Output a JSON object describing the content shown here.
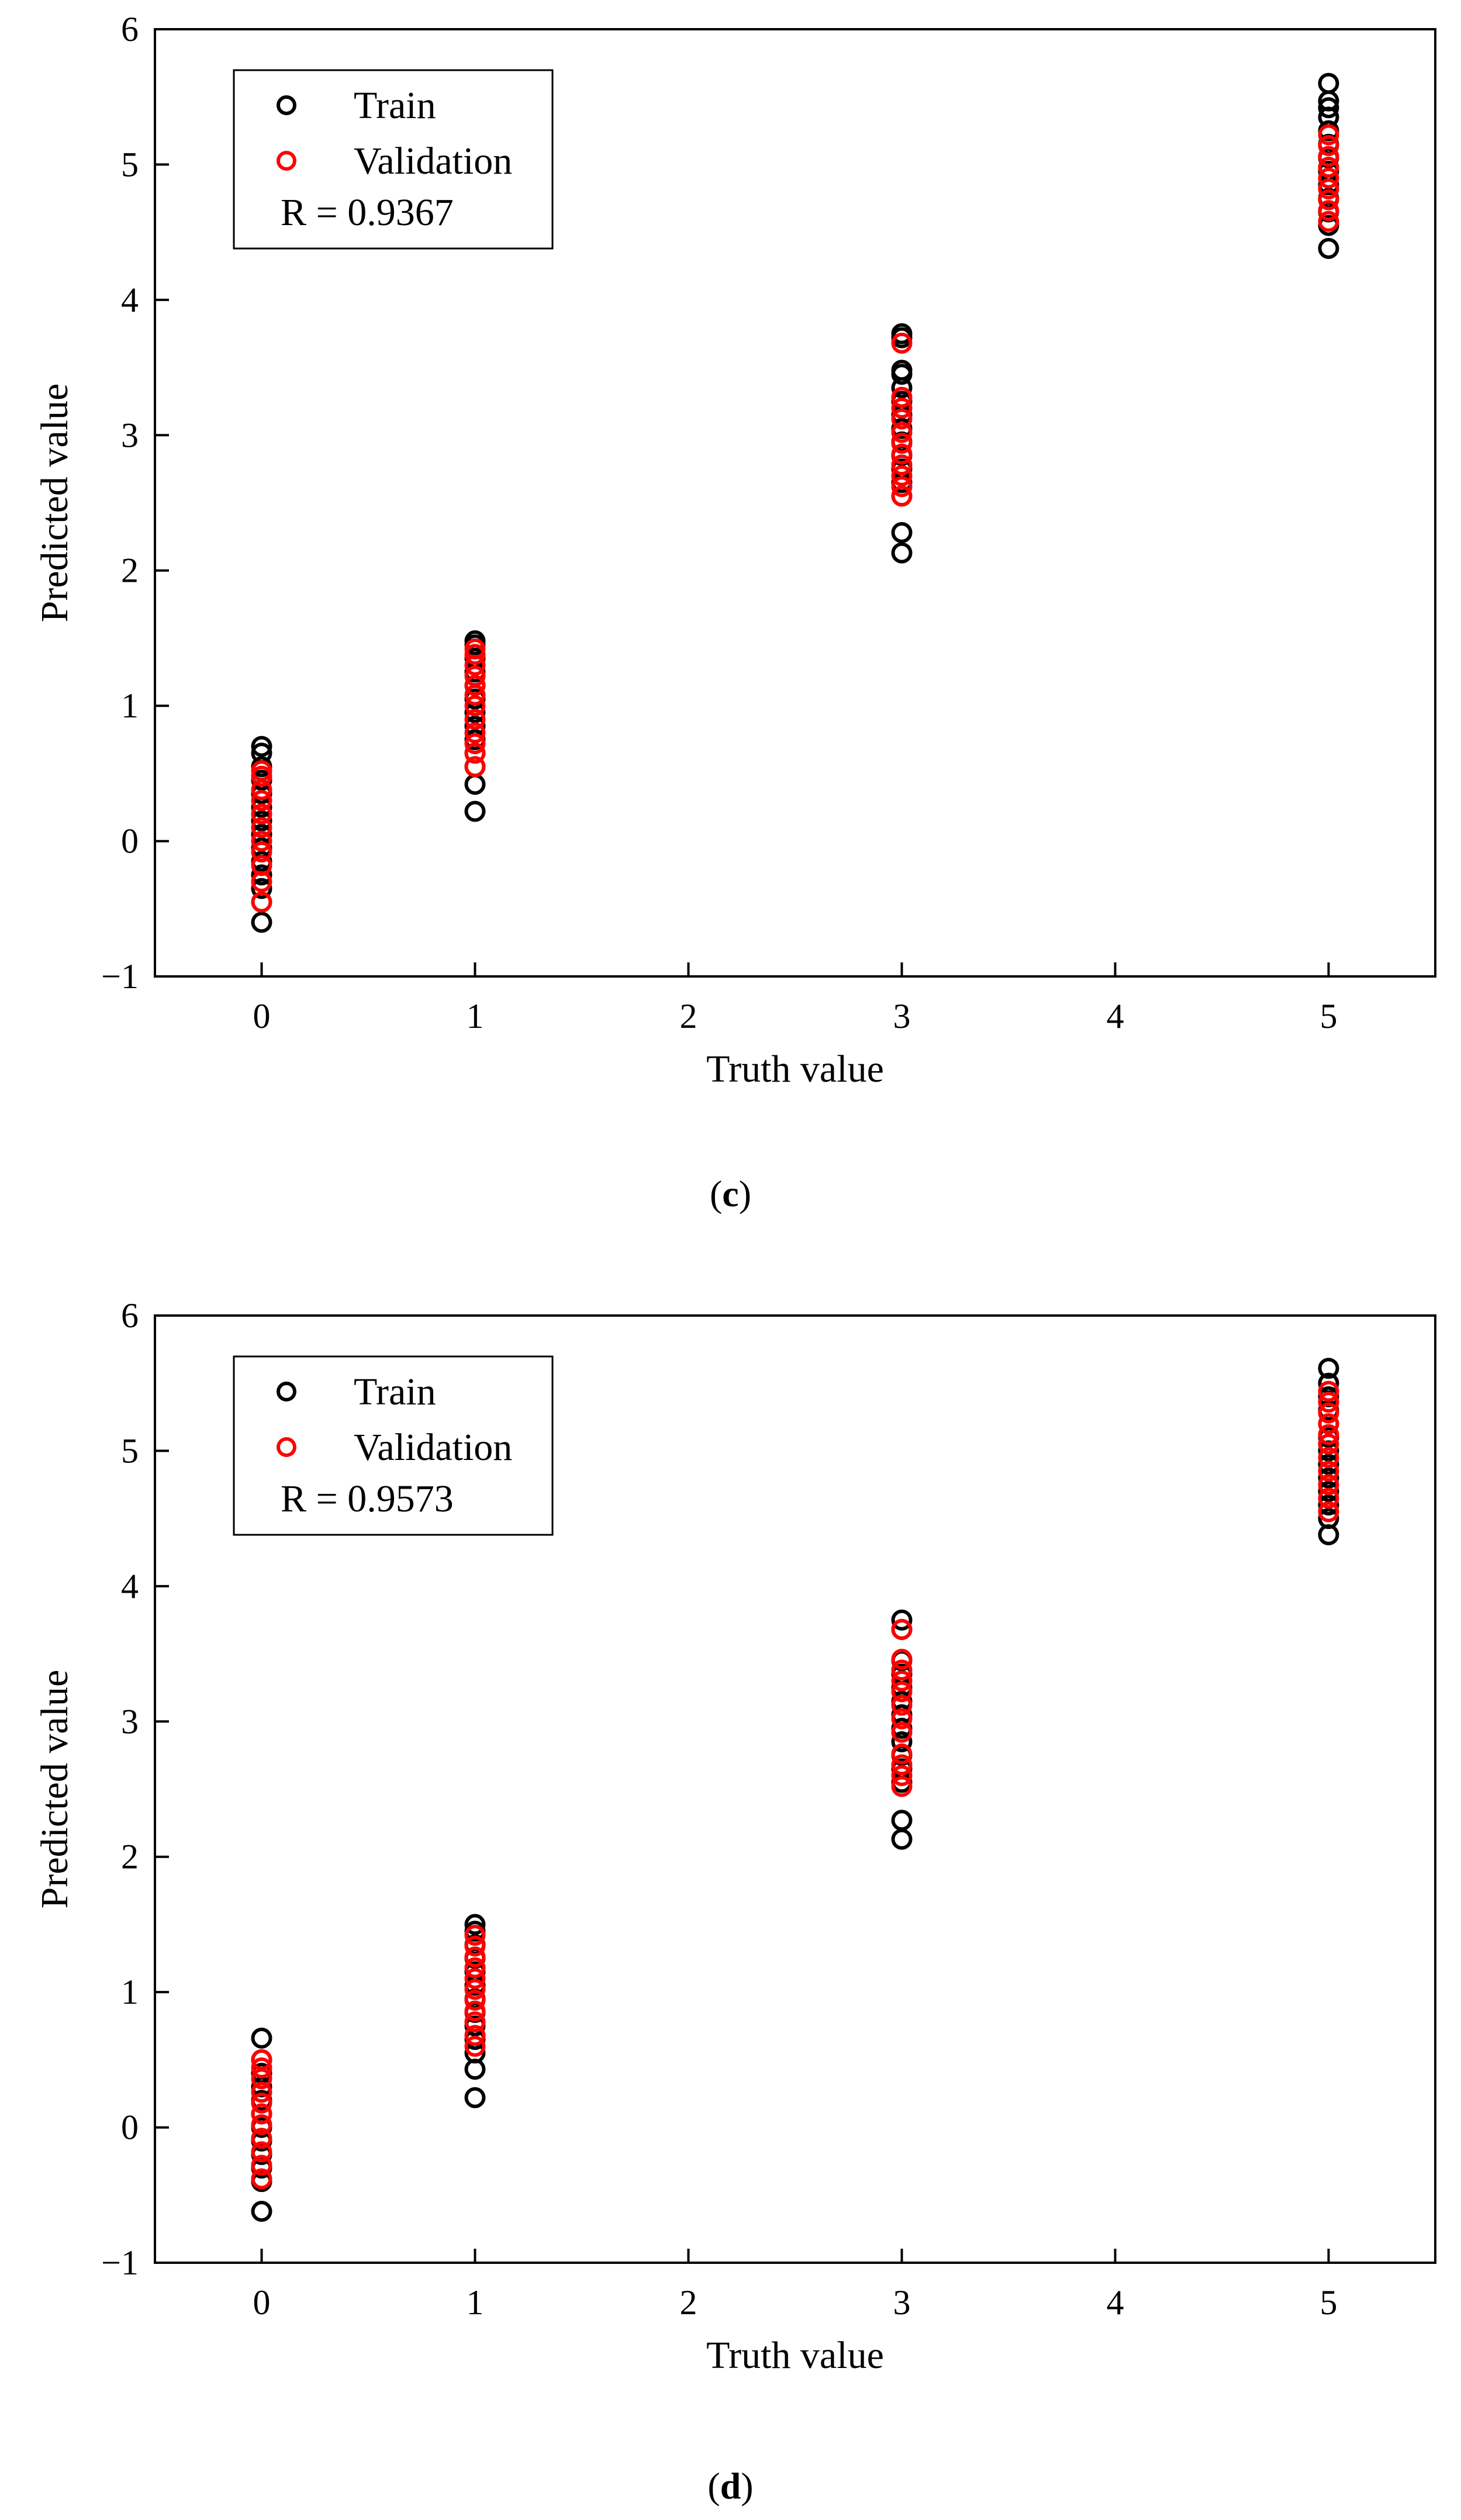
{
  "colors": {
    "train": "#000000",
    "validation": "#ff0000",
    "axis": "#000000"
  },
  "chart_data": [
    {
      "panel": "c",
      "type": "scatter",
      "title": "",
      "xlabel": "Truth value",
      "ylabel": "Predicted value",
      "xlim": [
        -0.5,
        5.5
      ],
      "ylim": [
        -1,
        6
      ],
      "xticks": [
        0,
        1,
        2,
        3,
        4,
        5
      ],
      "yticks": [
        -1,
        0,
        1,
        2,
        3,
        4,
        5,
        6
      ],
      "xtick_labels": [
        "0",
        "1",
        "2",
        "3",
        "4",
        "5"
      ],
      "ytick_labels": [
        "−1",
        "0",
        "1",
        "2",
        "3",
        "4",
        "5",
        "6"
      ],
      "legend_position": "top-left",
      "annotation": "R = 0.9367",
      "caption_open": "(",
      "caption_label": "c",
      "caption_close": ")",
      "series": [
        {
          "name": "Train",
          "color": "#000000",
          "points": [
            [
              0,
              -0.6
            ],
            [
              0,
              -0.45
            ],
            [
              0,
              -0.35
            ],
            [
              0,
              -0.25
            ],
            [
              0,
              -0.15
            ],
            [
              0,
              -0.05
            ],
            [
              0,
              0.05
            ],
            [
              0,
              0.15
            ],
            [
              0,
              0.25
            ],
            [
              0,
              0.35
            ],
            [
              0,
              0.45
            ],
            [
              0,
              0.55
            ],
            [
              0,
              0.65
            ],
            [
              0,
              0.7
            ],
            [
              1,
              0.22
            ],
            [
              1,
              0.42
            ],
            [
              1,
              0.55
            ],
            [
              1,
              0.65
            ],
            [
              1,
              0.75
            ],
            [
              1,
              0.85
            ],
            [
              1,
              0.95
            ],
            [
              1,
              1.05
            ],
            [
              1,
              1.15
            ],
            [
              1,
              1.25
            ],
            [
              1,
              1.35
            ],
            [
              1,
              1.45
            ],
            [
              1,
              1.48
            ],
            [
              3,
              2.13
            ],
            [
              3,
              2.28
            ],
            [
              3,
              2.55
            ],
            [
              3,
              2.65
            ],
            [
              3,
              2.75
            ],
            [
              3,
              2.85
            ],
            [
              3,
              2.95
            ],
            [
              3,
              3.05
            ],
            [
              3,
              3.15
            ],
            [
              3,
              3.25
            ],
            [
              3,
              3.35
            ],
            [
              3,
              3.45
            ],
            [
              3,
              3.48
            ],
            [
              3,
              3.72
            ],
            [
              3,
              3.75
            ],
            [
              5,
              4.38
            ],
            [
              5,
              4.55
            ],
            [
              5,
              4.65
            ],
            [
              5,
              4.75
            ],
            [
              5,
              4.85
            ],
            [
              5,
              4.95
            ],
            [
              5,
              5.05
            ],
            [
              5,
              5.15
            ],
            [
              5,
              5.25
            ],
            [
              5,
              5.35
            ],
            [
              5,
              5.42
            ],
            [
              5,
              5.47
            ],
            [
              5,
              5.6
            ]
          ]
        },
        {
          "name": "Validation",
          "color": "#ff0000",
          "points": [
            [
              0,
              -0.45
            ],
            [
              0,
              -0.3
            ],
            [
              0,
              -0.18
            ],
            [
              0,
              -0.08
            ],
            [
              0,
              0.0
            ],
            [
              0,
              0.1
            ],
            [
              0,
              0.2
            ],
            [
              0,
              0.3
            ],
            [
              0,
              0.38
            ],
            [
              0,
              0.48
            ],
            [
              0,
              0.52
            ],
            [
              1,
              0.55
            ],
            [
              1,
              0.65
            ],
            [
              1,
              0.72
            ],
            [
              1,
              0.8
            ],
            [
              1,
              0.9
            ],
            [
              1,
              1.0
            ],
            [
              1,
              1.08
            ],
            [
              1,
              1.15
            ],
            [
              1,
              1.22
            ],
            [
              1,
              1.3
            ],
            [
              1,
              1.38
            ],
            [
              1,
              1.42
            ],
            [
              3,
              2.55
            ],
            [
              3,
              2.62
            ],
            [
              3,
              2.7
            ],
            [
              3,
              2.78
            ],
            [
              3,
              2.86
            ],
            [
              3,
              2.94
            ],
            [
              3,
              3.02
            ],
            [
              3,
              3.12
            ],
            [
              3,
              3.2
            ],
            [
              3,
              3.28
            ],
            [
              3,
              3.68
            ],
            [
              5,
              4.58
            ],
            [
              5,
              4.66
            ],
            [
              5,
              4.74
            ],
            [
              5,
              4.82
            ],
            [
              5,
              4.9
            ],
            [
              5,
              4.98
            ],
            [
              5,
              5.06
            ],
            [
              5,
              5.14
            ],
            [
              5,
              5.22
            ]
          ]
        }
      ]
    },
    {
      "panel": "d",
      "type": "scatter",
      "title": "",
      "xlabel": "Truth value",
      "ylabel": "Predicted value",
      "xlim": [
        -0.5,
        5.5
      ],
      "ylim": [
        -1,
        6
      ],
      "xticks": [
        0,
        1,
        2,
        3,
        4,
        5
      ],
      "yticks": [
        -1,
        0,
        1,
        2,
        3,
        4,
        5,
        6
      ],
      "xtick_labels": [
        "0",
        "1",
        "2",
        "3",
        "4",
        "5"
      ],
      "ytick_labels": [
        "−1",
        "0",
        "1",
        "2",
        "3",
        "4",
        "5",
        "6"
      ],
      "legend_position": "top-left",
      "annotation": "R = 0.9573",
      "caption_open": "(",
      "caption_label": "d",
      "caption_close": ")",
      "series": [
        {
          "name": "Train",
          "color": "#000000",
          "points": [
            [
              0,
              -0.62
            ],
            [
              0,
              -0.4
            ],
            [
              0,
              -0.3
            ],
            [
              0,
              -0.2
            ],
            [
              0,
              -0.1
            ],
            [
              0,
              0.0
            ],
            [
              0,
              0.1
            ],
            [
              0,
              0.2
            ],
            [
              0,
              0.3
            ],
            [
              0,
              0.4
            ],
            [
              0,
              0.5
            ],
            [
              0,
              0.66
            ],
            [
              1,
              0.22
            ],
            [
              1,
              0.43
            ],
            [
              1,
              0.55
            ],
            [
              1,
              0.65
            ],
            [
              1,
              0.75
            ],
            [
              1,
              0.85
            ],
            [
              1,
              0.95
            ],
            [
              1,
              1.05
            ],
            [
              1,
              1.15
            ],
            [
              1,
              1.25
            ],
            [
              1,
              1.35
            ],
            [
              1,
              1.45
            ],
            [
              1,
              1.5
            ],
            [
              3,
              2.13
            ],
            [
              3,
              2.27
            ],
            [
              3,
              2.55
            ],
            [
              3,
              2.65
            ],
            [
              3,
              2.75
            ],
            [
              3,
              2.85
            ],
            [
              3,
              2.95
            ],
            [
              3,
              3.05
            ],
            [
              3,
              3.15
            ],
            [
              3,
              3.25
            ],
            [
              3,
              3.35
            ],
            [
              3,
              3.45
            ],
            [
              3,
              3.68
            ],
            [
              3,
              3.75
            ],
            [
              5,
              4.38
            ],
            [
              5,
              4.5
            ],
            [
              5,
              4.6
            ],
            [
              5,
              4.7
            ],
            [
              5,
              4.8
            ],
            [
              5,
              4.9
            ],
            [
              5,
              5.0
            ],
            [
              5,
              5.1
            ],
            [
              5,
              5.2
            ],
            [
              5,
              5.3
            ],
            [
              5,
              5.4
            ],
            [
              5,
              5.5
            ],
            [
              5,
              5.61
            ]
          ]
        },
        {
          "name": "Validation",
          "color": "#ff0000",
          "points": [
            [
              0,
              -0.38
            ],
            [
              0,
              -0.28
            ],
            [
              0,
              -0.18
            ],
            [
              0,
              -0.08
            ],
            [
              0,
              0.02
            ],
            [
              0,
              0.1
            ],
            [
              0,
              0.18
            ],
            [
              0,
              0.26
            ],
            [
              0,
              0.36
            ],
            [
              0,
              0.44
            ],
            [
              0,
              0.5
            ],
            [
              1,
              0.6
            ],
            [
              1,
              0.68
            ],
            [
              1,
              0.78
            ],
            [
              1,
              0.86
            ],
            [
              1,
              0.94
            ],
            [
              1,
              1.02
            ],
            [
              1,
              1.1
            ],
            [
              1,
              1.18
            ],
            [
              1,
              1.26
            ],
            [
              1,
              1.34
            ],
            [
              1,
              1.42
            ],
            [
              3,
              2.52
            ],
            [
              3,
              2.6
            ],
            [
              3,
              2.68
            ],
            [
              3,
              2.76
            ],
            [
              3,
              2.92
            ],
            [
              3,
              3.02
            ],
            [
              3,
              3.12
            ],
            [
              3,
              3.22
            ],
            [
              3,
              3.3
            ],
            [
              3,
              3.38
            ],
            [
              3,
              3.46
            ],
            [
              3,
              3.68
            ],
            [
              5,
              4.55
            ],
            [
              5,
              4.65
            ],
            [
              5,
              4.75
            ],
            [
              5,
              4.85
            ],
            [
              5,
              4.95
            ],
            [
              5,
              5.05
            ],
            [
              5,
              5.12
            ],
            [
              5,
              5.2
            ],
            [
              5,
              5.28
            ],
            [
              5,
              5.36
            ],
            [
              5,
              5.44
            ]
          ]
        }
      ]
    }
  ]
}
